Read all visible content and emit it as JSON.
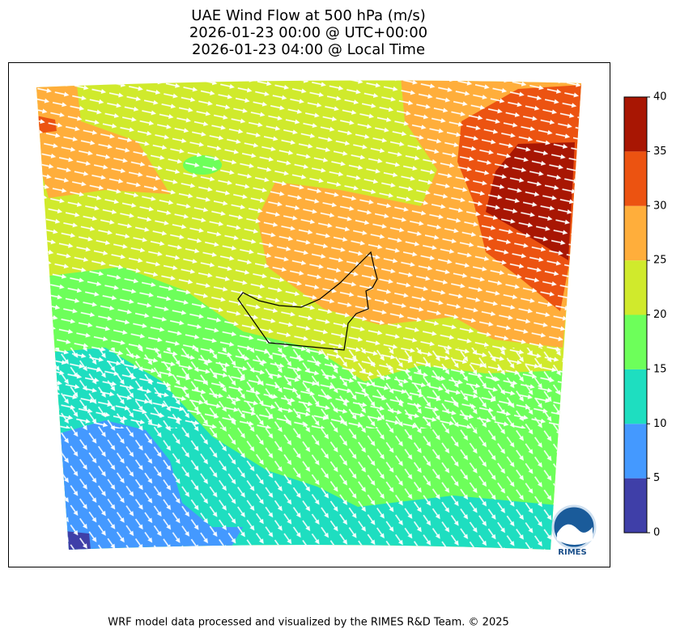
{
  "title": [
    "UAE Wind Flow at 500 hPa (m/s)",
    "2026-01-23 00:00 @ UTC+00:00",
    "2026-01-23 04:00 @ Local Time"
  ],
  "colorbar": {
    "ticks": [
      0,
      5,
      10,
      15,
      20,
      25,
      30,
      35,
      40
    ],
    "colors": [
      "#3f3fa8",
      "#4499ff",
      "#1edec0",
      "#6dff5a",
      "#d0ea2c",
      "#ffae3b",
      "#ec5311",
      "#a81603"
    ]
  },
  "logo": "RIMES",
  "footer": "WRF model data processed and visualized by the RIMES R&D Team. © 2025"
}
